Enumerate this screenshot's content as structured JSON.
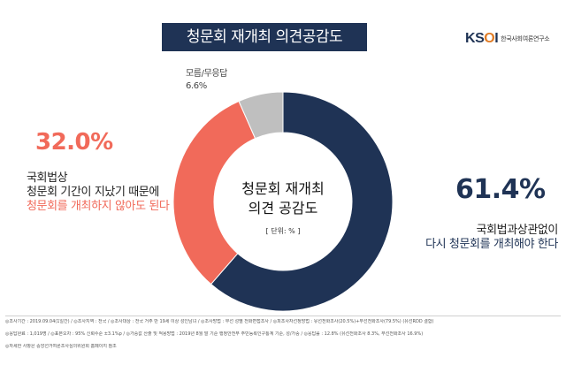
{
  "header": {
    "title": "청문회 재개최 의견공감도"
  },
  "logo": {
    "mark_k": "K",
    "mark_s": "S",
    "mark_o": "O",
    "mark_i": "I",
    "subtitle": "한국사회여론연구소"
  },
  "chart_data": {
    "type": "pie",
    "variant": "donut",
    "title": "청문회 재개최 의견공감도",
    "center_label_1": "청문회 재개최",
    "center_label_2": "의견 공감도",
    "unit_label": "[ 단위: % ]",
    "slices": [
      {
        "label_1": "국회법과상관없이",
        "label_2": "다시 청문회를 개최해야 한다",
        "value": 61.4,
        "value_label": "61.4%",
        "color": "#1f3355"
      },
      {
        "label_1": "국회법상",
        "label_2": "청문회 기간이 지났기 때문에",
        "label_3": "청문회를 개최하지 않아도 된다",
        "value": 32.0,
        "value_label": "32.0%",
        "color": "#f16a5a"
      },
      {
        "label_1": "모름/무응답",
        "value": 6.6,
        "value_label": "6.6%",
        "color": "#bfbfbf"
      }
    ]
  },
  "footnotes": {
    "line1": "◎조사기간 : 2019.09.04(1일간)   / ◎조사지역 : 전국  / ◎조사대상 : 전국 거주 만 19세 이상 성인남녀  / ◎조사방법 : 무선 성별 전화면접조사 / ◎피조사자선정방법 : 유선전화조사(20.5%)+무선전화조사(79.5%) (유선RDD 결합)",
    "line2": "◎응답완료 : 1,019명  / ◎표본오차 : 95% 신뢰수준 ±3.1%p  / ◎가중값 산출 및 적용방법 : 2019년 8월 말 기준 행정안전부 주민등록인구통계 기준, 성/가중  / ◎응답률 : 12.8% (유선전화조사 8.3%, 무선전화조사 16.9%)",
    "line3": "◎자세한 사항은 중앙선거여론조사심의위원회 홈페이지 참조"
  }
}
